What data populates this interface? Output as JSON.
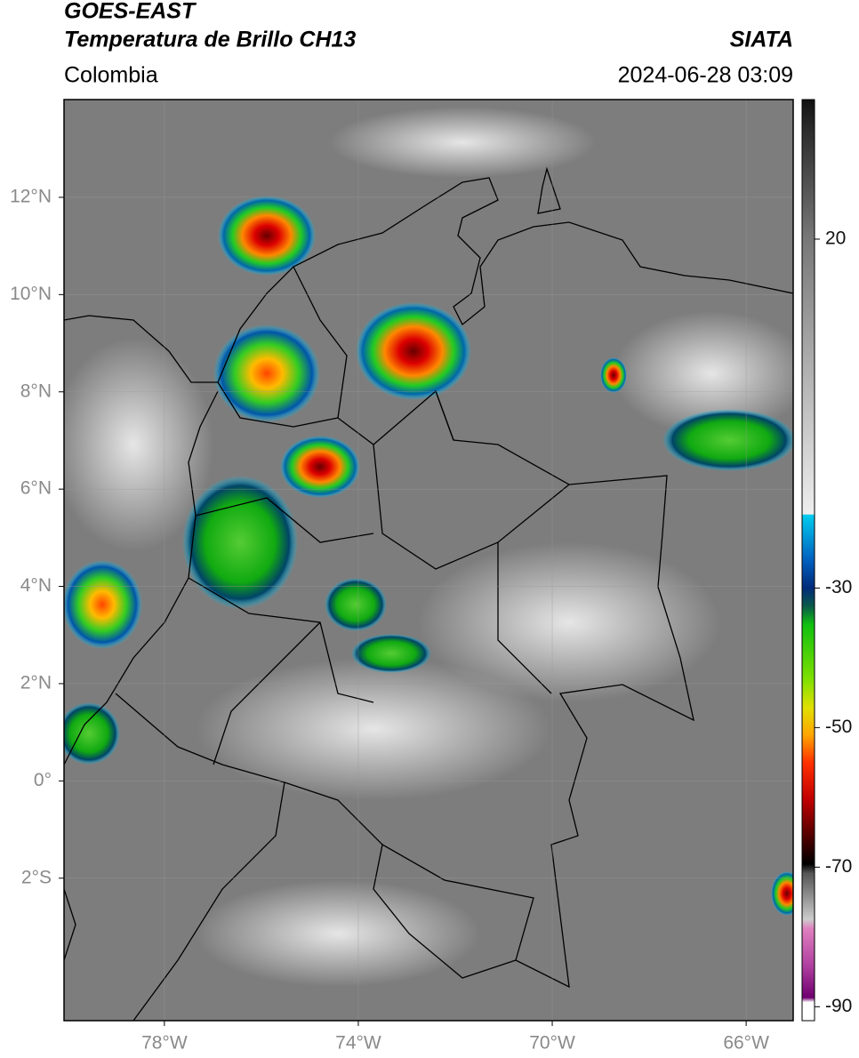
{
  "header": {
    "title": "GOES-EAST",
    "subtitle": "Temperatura de Brillo CH13",
    "source": "SIATA",
    "region": "Colombia",
    "datetime": "2024-06-28 03:09"
  },
  "map": {
    "lonlim": [
      -80.07,
      -65.03
    ],
    "latlim": [
      -4.93,
      14.01
    ],
    "grid": true,
    "lon_ticks": [
      {
        "value": -78,
        "label": "78°W"
      },
      {
        "value": -74,
        "label": "74°W"
      },
      {
        "value": -70,
        "label": "70°W"
      },
      {
        "value": -66,
        "label": "66°W"
      }
    ],
    "lat_ticks": [
      {
        "value": 12,
        "label": "12°N"
      },
      {
        "value": 10,
        "label": "10°N"
      },
      {
        "value": 8,
        "label": "8°N"
      },
      {
        "value": 6,
        "label": "6°N"
      },
      {
        "value": 4,
        "label": "4°N"
      },
      {
        "value": 2,
        "label": "2°N"
      },
      {
        "value": 0,
        "label": "0°"
      },
      {
        "value": -2,
        "label": "2°S"
      }
    ]
  },
  "colorbar": {
    "lim": [
      -92,
      40
    ],
    "ticks": [
      20,
      -30,
      -50,
      -70,
      -90
    ]
  }
}
